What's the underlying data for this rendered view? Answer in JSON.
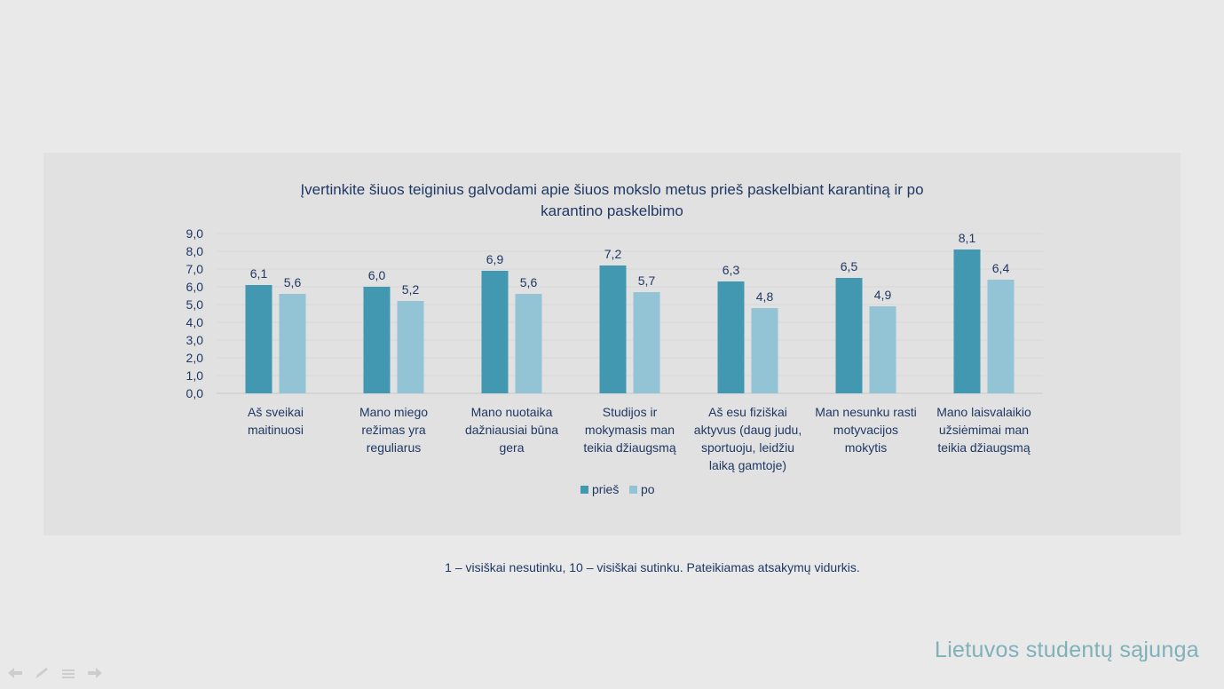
{
  "footnote": "1 – visiškai nesutinku, 10 – visiškai sutinku. Pateikiamas atsakymų vidurkis.",
  "brand": "Lietuvos studentų sąjunga",
  "colors": {
    "pries": "#4198b0",
    "po": "#92c4d6",
    "text": "#1f3864",
    "grid": "#d6d6d6"
  },
  "chart_data": {
    "type": "bar",
    "title_line1": "Įvertinkite šiuos teiginius galvodami apie šiuos mokslo metus prieš paskelbiant karantiną ir po",
    "title_line2": "karantino paskelbimo",
    "categories": [
      [
        "Aš sveikai",
        "maitinuosi"
      ],
      [
        "Mano miego",
        "režimas yra",
        "reguliarus"
      ],
      [
        "Mano nuotaika",
        "dažniausiai būna",
        "gera"
      ],
      [
        "Studijos ir",
        "mokymasis man",
        "teikia džiaugsmą"
      ],
      [
        "Aš esu fiziškai",
        "aktyvus (daug judu,",
        "sportuoju, leidžiu",
        "laiką gamtoje)"
      ],
      [
        "Man nesunku rasti",
        "motyvacijos",
        "mokytis"
      ],
      [
        "Mano laisvalaikio",
        "užsiėmimai man",
        "teikia džiaugsmą"
      ]
    ],
    "series": [
      {
        "name": "prieš",
        "values": [
          6.1,
          6.0,
          6.9,
          7.2,
          6.3,
          6.5,
          8.1
        ],
        "labels": [
          "6,1",
          "6,0",
          "6,9",
          "7,2",
          "6,3",
          "6,5",
          "8,1"
        ]
      },
      {
        "name": "po",
        "values": [
          5.6,
          5.2,
          5.6,
          5.7,
          4.8,
          4.9,
          6.4
        ],
        "labels": [
          "5,6",
          "5,2",
          "5,6",
          "5,7",
          "4,8",
          "4,9",
          "6,4"
        ]
      }
    ],
    "ylim": [
      0,
      9
    ],
    "yticks": [
      "0,0",
      "1,0",
      "2,0",
      "3,0",
      "4,0",
      "5,0",
      "6,0",
      "7,0",
      "8,0",
      "9,0"
    ],
    "grid": true,
    "legend": "bottom-center"
  }
}
